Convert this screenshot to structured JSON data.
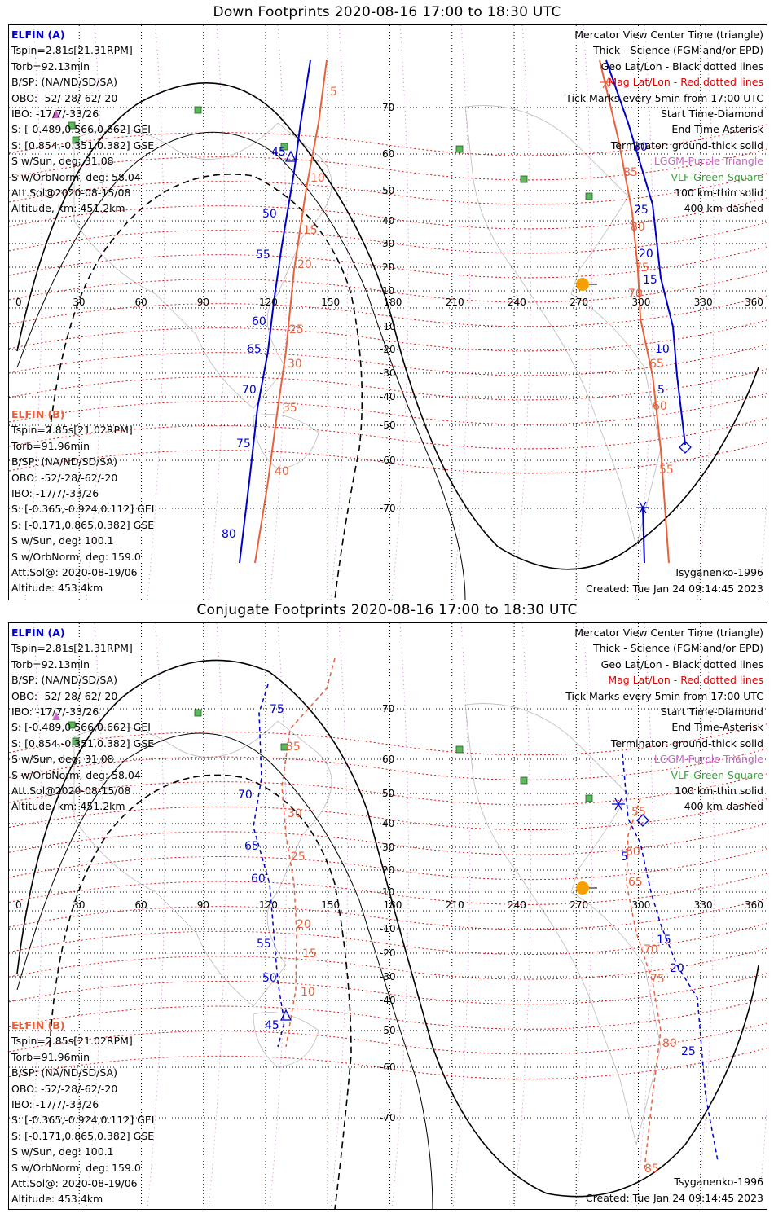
{
  "titles": {
    "down": "Down Footprints 2020-08-16 17:00 to 18:30 UTC",
    "conj": "Conjugate Footprints 2020-08-16 17:00 to 18:30 UTC"
  },
  "colors": {
    "elfin_a": "#0000cc",
    "elfin_b": "#e8603c",
    "mag_grid": "#e00000",
    "geo_grid": "#000000",
    "lshell": "#cc66cc",
    "vlf": "#3aa03a",
    "sun": "#f5a000"
  },
  "elfin_a": {
    "name": "ELFIN (A)",
    "lines": [
      "Tspin=2.81s[21.31RPM]",
      "Torb=92.13min",
      "B/SP: (NA/ND/SD/SA)",
      "OBO: -52/-28/-62/-20",
      "IBO: -17/7/-33/26",
      "S: [-0.489,0.566,0.662] GEI",
      "S: [0.854,-0.351,0.382] GSE",
      "S w/Sun, deg: 31.08",
      "S w/OrbNorm, deg: 58.04",
      "Att.Sol@2020-08-15/08",
      "Altitude, km: 451.2km"
    ]
  },
  "elfin_b": {
    "name": "ELFIN (B)",
    "lines": [
      "Tspin=2.85s[21.02RPM]",
      "Torb=91.96min",
      "B/SP: (NA/ND/SD/SA)",
      "OBO: -52/-28/-62/-20",
      "IBO: -17/7/-33/26",
      "S: [-0.365,-0.924,0.112] GEI",
      "S: [-0.171,0.865,0.382] GSE",
      "S w/Sun, deg: 100.1",
      "S w/OrbNorm, deg: 159.0",
      "Att.Sol@: 2020-08-19/06",
      "Altitude: 453.4km"
    ]
  },
  "legend": [
    {
      "text": "Mercator View Center Time (triangle)",
      "style": "blk"
    },
    {
      "text": "Thick - Science (FGM and/or EPD)",
      "style": "blk"
    },
    {
      "text": "Geo Lat/Lon - Black dotted lines",
      "style": "blk"
    },
    {
      "text": "Mag Lat/Lon - Red dotted lines",
      "style": "red"
    },
    {
      "text": "Tick Marks every 5min from 17:00 UTC",
      "style": "blk"
    },
    {
      "text": "Start Time-Diamond",
      "style": "blk"
    },
    {
      "text": "End Time-Asterisk",
      "style": "blk"
    },
    {
      "text": "Terminator: ground-thick solid",
      "style": "blk"
    },
    {
      "text": "LGGM-Purple Triangle",
      "style": "pur"
    },
    {
      "text": "VLF-Green Square",
      "style": "grn"
    },
    {
      "text": "100 km-thin solid",
      "style": "blk"
    },
    {
      "text": "400 km-dashed",
      "style": "blk"
    }
  ],
  "footer": {
    "model": "Tsyganenko-1996",
    "created": "Created: Tue Jan 24 09:14:45 2023"
  },
  "axes": {
    "lon_ticks": [
      "0",
      "30",
      "60",
      "90",
      "120",
      "150",
      "180",
      "210",
      "240",
      "270",
      "300",
      "330",
      "360"
    ],
    "lat_ticks": [
      "70",
      "60",
      "50",
      "40",
      "30",
      "20",
      "10",
      "-10",
      "-20",
      "-30",
      "-40",
      "-50",
      "-60",
      "-70"
    ]
  },
  "down_labels": {
    "a": [
      "45",
      "50",
      "55",
      "60",
      "65",
      "70",
      "75",
      "80",
      "30",
      "25",
      "20",
      "15",
      "10",
      "5"
    ],
    "b": [
      "5",
      "10",
      "15",
      "20",
      "25",
      "30",
      "35",
      "40",
      "85",
      "80",
      "75",
      "70",
      "65",
      "60",
      "55"
    ]
  },
  "conj_labels": {
    "a": [
      "75",
      "70",
      "65",
      "60",
      "55",
      "50",
      "45",
      "5",
      "15",
      "20",
      "25"
    ],
    "b": [
      "35",
      "30",
      "25",
      "20",
      "15",
      "10",
      "55",
      "60",
      "65",
      "70",
      "75",
      "80",
      "85"
    ]
  }
}
